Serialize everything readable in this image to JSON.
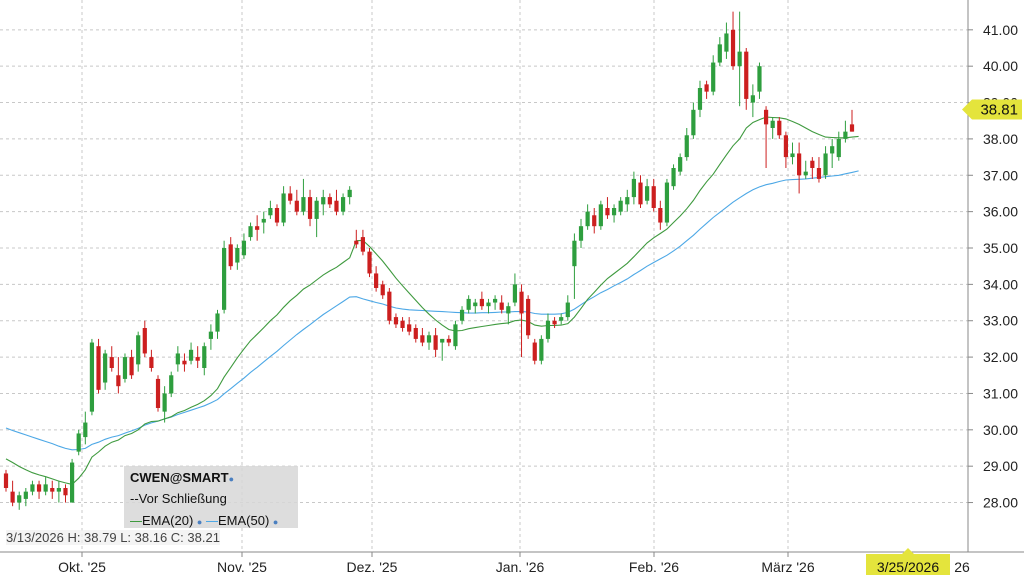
{
  "chart_data": {
    "type": "candlestick",
    "symbol": "CWEN@SMART",
    "subtitle": "Vor Schließung",
    "indicators": [
      {
        "name": "EMA(20)",
        "color": "#3f9a3f"
      },
      {
        "name": "EMA(50)",
        "color": "#4da8e6"
      }
    ],
    "ohlc_summary": "3/13/2026 H: 38.79 L: 38.16 C: 38.21",
    "last_price": "38.81",
    "cursor_date": "3/25/2026",
    "x_tick_labels": [
      "Okt. '25",
      "Nov. '25",
      "Dez. '25",
      "Jan. '26",
      "Feb. '26",
      "März '26"
    ],
    "x_tick_tail": "26",
    "y_ticks": [
      "28.00",
      "29.00",
      "30.00",
      "31.00",
      "32.00",
      "33.00",
      "34.00",
      "35.00",
      "36.00",
      "37.00",
      "38.00",
      "39.00",
      "40.00",
      "41.00"
    ],
    "ylim": [
      27.3,
      41.6
    ],
    "colors": {
      "up": "#2e9e3e",
      "down": "#cc1f1f",
      "price_tag": "#e4e43c",
      "grid": "#c8c8c8"
    },
    "candles": [
      [
        28.8,
        28.9,
        28.3,
        28.4
      ],
      [
        28.3,
        28.6,
        27.9,
        28.0
      ],
      [
        28.0,
        28.3,
        27.8,
        28.2
      ],
      [
        28.1,
        28.4,
        27.9,
        28.3
      ],
      [
        28.3,
        28.6,
        28.2,
        28.5
      ],
      [
        28.5,
        28.6,
        28.1,
        28.3
      ],
      [
        28.3,
        28.7,
        28.2,
        28.5
      ],
      [
        28.4,
        28.6,
        28.1,
        28.3
      ],
      [
        28.3,
        28.6,
        28.0,
        28.4
      ],
      [
        28.4,
        28.5,
        28.0,
        28.2
      ],
      [
        28.0,
        29.2,
        28.0,
        29.1
      ],
      [
        29.4,
        30.0,
        29.3,
        29.9
      ],
      [
        29.8,
        30.5,
        29.6,
        30.2
      ],
      [
        30.5,
        32.5,
        30.4,
        32.4
      ],
      [
        32.3,
        32.5,
        31.0,
        31.1
      ],
      [
        31.3,
        32.2,
        31.1,
        32.1
      ],
      [
        32.0,
        32.3,
        31.6,
        31.7
      ],
      [
        31.5,
        32.0,
        31.0,
        31.2
      ],
      [
        31.4,
        32.1,
        31.3,
        32.0
      ],
      [
        32.0,
        32.2,
        31.4,
        31.5
      ],
      [
        31.8,
        32.7,
        31.6,
        32.6
      ],
      [
        32.8,
        33.0,
        32.0,
        32.1
      ],
      [
        32.0,
        32.2,
        31.6,
        31.7
      ],
      [
        31.4,
        31.5,
        30.5,
        30.6
      ],
      [
        30.5,
        31.2,
        30.2,
        31.0
      ],
      [
        31.0,
        31.6,
        30.9,
        31.5
      ],
      [
        31.8,
        32.3,
        31.6,
        32.1
      ],
      [
        31.9,
        32.1,
        31.6,
        31.8
      ],
      [
        31.9,
        32.4,
        31.8,
        32.2
      ],
      [
        32.0,
        32.3,
        31.7,
        31.9
      ],
      [
        31.7,
        32.4,
        31.5,
        32.3
      ],
      [
        32.5,
        32.9,
        32.2,
        32.7
      ],
      [
        32.7,
        33.3,
        32.5,
        33.2
      ],
      [
        33.3,
        35.2,
        33.2,
        35.0
      ],
      [
        35.1,
        35.3,
        34.4,
        34.5
      ],
      [
        34.6,
        35.1,
        34.4,
        35.0
      ],
      [
        34.8,
        35.4,
        34.7,
        35.2
      ],
      [
        35.3,
        35.7,
        35.2,
        35.6
      ],
      [
        35.6,
        35.9,
        35.2,
        35.5
      ],
      [
        35.7,
        36.0,
        35.4,
        35.8
      ],
      [
        35.9,
        36.3,
        35.8,
        36.1
      ],
      [
        36.1,
        36.2,
        35.6,
        35.7
      ],
      [
        35.7,
        36.7,
        35.6,
        36.5
      ],
      [
        36.5,
        36.7,
        36.2,
        36.3
      ],
      [
        36.3,
        36.6,
        35.9,
        36.0
      ],
      [
        36.0,
        36.9,
        35.9,
        36.4
      ],
      [
        36.4,
        36.6,
        35.6,
        35.8
      ],
      [
        35.8,
        36.4,
        35.3,
        36.3
      ],
      [
        36.2,
        36.6,
        35.9,
        36.4
      ],
      [
        36.4,
        36.5,
        36.1,
        36.2
      ],
      [
        36.3,
        36.6,
        35.9,
        36.0
      ],
      [
        36.0,
        36.5,
        35.9,
        36.4
      ],
      [
        36.4,
        36.7,
        36.2,
        36.6
      ],
      [
        35.2,
        35.5,
        35.0,
        35.1
      ],
      [
        35.3,
        35.5,
        34.8,
        34.9
      ],
      [
        34.9,
        35.0,
        34.2,
        34.3
      ],
      [
        34.3,
        34.5,
        33.8,
        33.9
      ],
      [
        34.0,
        34.1,
        33.6,
        33.7
      ],
      [
        33.8,
        33.9,
        32.9,
        33.0
      ],
      [
        33.1,
        33.2,
        32.8,
        32.9
      ],
      [
        33.0,
        33.1,
        32.7,
        32.8
      ],
      [
        32.9,
        33.1,
        32.6,
        32.7
      ],
      [
        32.8,
        32.9,
        32.4,
        32.5
      ],
      [
        32.6,
        32.8,
        32.3,
        32.4
      ],
      [
        32.4,
        32.7,
        32.2,
        32.6
      ],
      [
        32.6,
        32.8,
        32.0,
        32.2
      ],
      [
        32.4,
        32.5,
        31.9,
        32.5
      ],
      [
        32.5,
        32.6,
        32.3,
        32.4
      ],
      [
        32.3,
        33.0,
        32.2,
        32.9
      ],
      [
        33.0,
        33.4,
        32.9,
        33.3
      ],
      [
        33.3,
        33.7,
        33.2,
        33.6
      ],
      [
        33.4,
        33.6,
        33.2,
        33.5
      ],
      [
        33.6,
        33.8,
        33.3,
        33.4
      ],
      [
        33.4,
        33.6,
        33.2,
        33.5
      ],
      [
        33.5,
        33.7,
        33.3,
        33.6
      ],
      [
        33.5,
        33.7,
        33.2,
        33.3
      ],
      [
        33.2,
        33.5,
        32.9,
        33.4
      ],
      [
        33.5,
        34.3,
        33.4,
        34.0
      ],
      [
        33.8,
        34.0,
        32.0,
        33.2
      ],
      [
        33.6,
        33.7,
        32.5,
        32.6
      ],
      [
        32.4,
        32.5,
        31.8,
        31.9
      ],
      [
        31.9,
        32.6,
        31.8,
        32.5
      ],
      [
        32.5,
        33.2,
        32.4,
        33.0
      ],
      [
        33.0,
        33.1,
        32.8,
        32.9
      ],
      [
        33.0,
        33.2,
        32.9,
        33.1
      ],
      [
        33.1,
        33.7,
        33.0,
        33.5
      ],
      [
        34.5,
        35.4,
        33.6,
        35.2
      ],
      [
        35.2,
        35.8,
        35.0,
        35.6
      ],
      [
        35.6,
        36.2,
        35.5,
        36.0
      ],
      [
        35.9,
        36.1,
        35.4,
        35.6
      ],
      [
        35.6,
        36.3,
        35.5,
        36.2
      ],
      [
        36.1,
        36.4,
        35.8,
        35.9
      ],
      [
        35.9,
        36.2,
        35.7,
        36.1
      ],
      [
        36.0,
        36.4,
        35.9,
        36.3
      ],
      [
        36.2,
        36.6,
        36.0,
        36.4
      ],
      [
        36.4,
        37.1,
        36.2,
        36.9
      ],
      [
        36.8,
        37.0,
        36.1,
        36.2
      ],
      [
        36.3,
        36.9,
        36.2,
        36.7
      ],
      [
        36.7,
        36.9,
        36.0,
        36.1
      ],
      [
        36.1,
        36.3,
        35.5,
        35.7
      ],
      [
        35.7,
        36.9,
        35.6,
        36.8
      ],
      [
        36.7,
        37.3,
        36.6,
        37.2
      ],
      [
        37.1,
        37.6,
        37.0,
        37.5
      ],
      [
        37.5,
        38.3,
        37.4,
        38.1
      ],
      [
        38.1,
        39.0,
        38.0,
        38.8
      ],
      [
        38.8,
        39.6,
        38.6,
        39.4
      ],
      [
        39.5,
        39.6,
        39.1,
        39.3
      ],
      [
        39.3,
        40.3,
        39.2,
        40.1
      ],
      [
        40.1,
        40.8,
        40.0,
        40.6
      ],
      [
        40.4,
        41.2,
        40.2,
        40.9
      ],
      [
        41.0,
        41.5,
        39.9,
        40.0
      ],
      [
        40.0,
        41.5,
        38.9,
        40.4
      ],
      [
        40.4,
        40.5,
        38.8,
        39.1
      ],
      [
        39.0,
        39.5,
        38.6,
        39.2
      ],
      [
        39.3,
        40.1,
        39.1,
        40.0
      ],
      [
        38.8,
        38.9,
        37.2,
        38.4
      ],
      [
        38.3,
        38.6,
        38.0,
        38.5
      ],
      [
        38.5,
        38.6,
        38.0,
        38.1
      ],
      [
        38.1,
        38.2,
        37.2,
        37.5
      ],
      [
        37.5,
        37.9,
        37.3,
        37.6
      ],
      [
        37.6,
        37.9,
        36.5,
        37.0
      ],
      [
        37.0,
        37.4,
        36.9,
        37.1
      ],
      [
        37.4,
        37.5,
        36.9,
        37.2
      ],
      [
        37.2,
        37.5,
        36.8,
        36.9
      ],
      [
        37.0,
        37.8,
        36.9,
        37.6
      ],
      [
        37.6,
        38.0,
        37.2,
        37.8
      ],
      [
        37.5,
        38.2,
        37.4,
        38.0
      ],
      [
        38.0,
        38.5,
        37.9,
        38.2
      ],
      [
        38.4,
        38.8,
        38.2,
        38.2
      ]
    ],
    "ema20": [
      29.2,
      29.1,
      28.99,
      28.9,
      28.82,
      28.76,
      28.71,
      28.65,
      28.59,
      28.54,
      28.5,
      28.67,
      28.9,
      29.25,
      29.39,
      29.55,
      29.66,
      29.72,
      29.84,
      29.9,
      30.0,
      30.16,
      30.23,
      30.24,
      30.3,
      30.36,
      30.47,
      30.53,
      30.62,
      30.7,
      30.8,
      30.94,
      31.13,
      31.45,
      31.71,
      31.98,
      32.22,
      32.45,
      32.63,
      32.81,
      33.0,
      33.16,
      33.37,
      33.55,
      33.7,
      33.87,
      33.98,
      34.12,
      34.26,
      34.37,
      34.47,
      34.6,
      34.73,
      35.2,
      35.21,
      35.04,
      34.84,
      34.64,
      34.41,
      34.17,
      33.96,
      33.76,
      33.56,
      33.36,
      33.18,
      33.02,
      32.88,
      32.76,
      32.72,
      32.73,
      32.78,
      32.81,
      32.84,
      32.87,
      32.9,
      32.92,
      32.94,
      33.0,
      33.02,
      32.98,
      32.88,
      32.85,
      32.87,
      32.87,
      32.88,
      32.92,
      33.1,
      33.34,
      33.59,
      33.78,
      33.98,
      34.16,
      34.3,
      34.44,
      34.58,
      34.76,
      34.95,
      35.14,
      35.28,
      35.4,
      35.52,
      35.7,
      35.88,
      36.08,
      36.31,
      36.58,
      36.82,
      37.03,
      37.3,
      37.56,
      37.81,
      38.0,
      38.3,
      38.45,
      38.53,
      38.6,
      38.59,
      38.58,
      38.55,
      38.48,
      38.4,
      38.3,
      38.2,
      38.12,
      38.05,
      38.04,
      38.03,
      38.03,
      38.05,
      38.07
    ],
    "ema50": [
      30.05,
      29.98,
      29.92,
      29.86,
      29.8,
      29.74,
      29.68,
      29.62,
      29.55,
      29.49,
      29.45,
      29.46,
      29.49,
      29.6,
      29.66,
      29.74,
      29.8,
      29.84,
      29.91,
      29.97,
      30.04,
      30.13,
      30.19,
      30.24,
      30.3,
      30.35,
      30.42,
      30.48,
      30.54,
      30.6,
      30.66,
      30.74,
      30.83,
      30.99,
      31.13,
      31.28,
      31.42,
      31.58,
      31.72,
      31.87,
      32.02,
      32.16,
      32.32,
      32.47,
      32.62,
      32.76,
      32.89,
      33.03,
      33.17,
      33.29,
      33.41,
      33.53,
      33.65,
      33.66,
      33.6,
      33.55,
      33.5,
      33.46,
      33.4,
      33.35,
      33.32,
      33.3,
      33.29,
      33.28,
      33.27,
      33.26,
      33.25,
      33.24,
      33.23,
      33.22,
      33.21,
      33.21,
      33.22,
      33.22,
      33.23,
      33.24,
      33.24,
      33.25,
      33.25,
      33.24,
      33.2,
      33.18,
      33.18,
      33.18,
      33.19,
      33.23,
      33.32,
      33.44,
      33.56,
      33.66,
      33.77,
      33.86,
      33.96,
      34.05,
      34.15,
      34.27,
      34.38,
      34.5,
      34.6,
      34.7,
      34.8,
      34.92,
      35.05,
      35.2,
      35.35,
      35.52,
      35.68,
      35.84,
      35.98,
      36.12,
      36.26,
      36.38,
      36.5,
      36.6,
      36.68,
      36.74,
      36.78,
      36.83,
      36.87,
      36.88,
      36.89,
      36.9,
      36.92,
      36.94,
      36.96,
      36.98,
      37.0,
      37.04,
      37.08,
      37.12
    ]
  }
}
